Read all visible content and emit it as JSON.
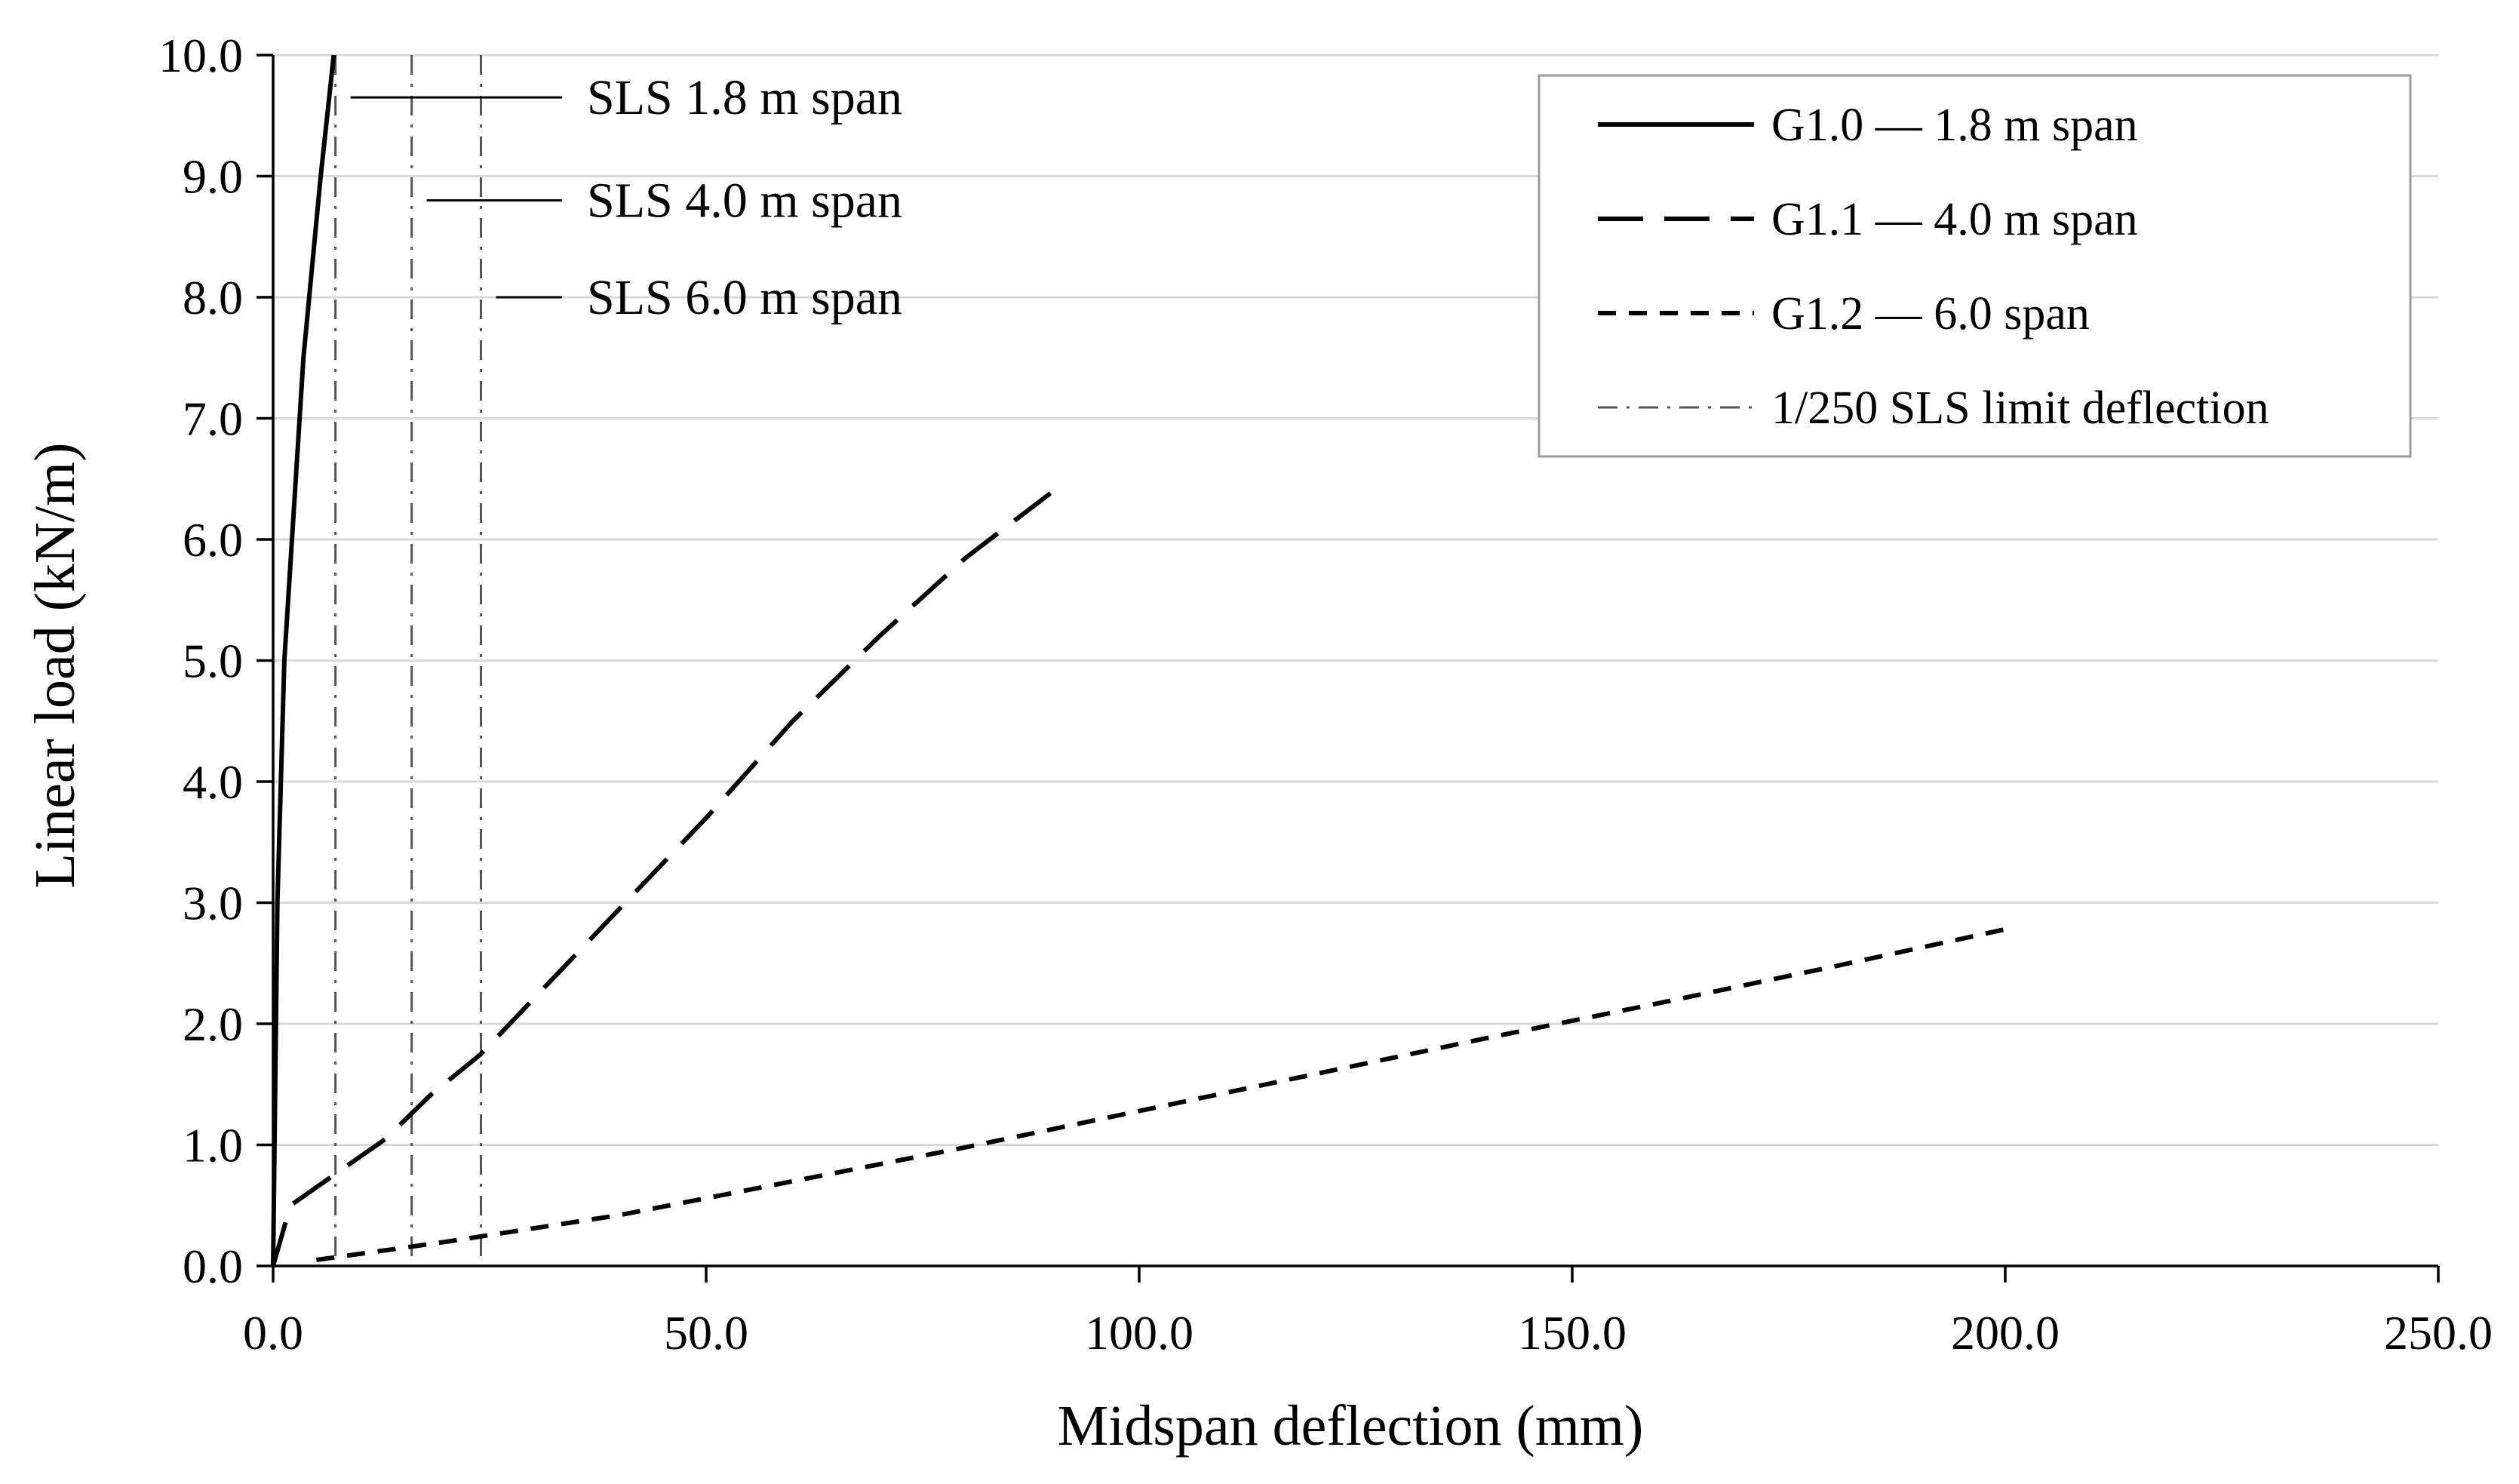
{
  "chart_data": {
    "type": "line",
    "xlabel": "Midspan deflection (mm)",
    "ylabel": "Linear load (kN/m)",
    "xlim": [
      0,
      250
    ],
    "ylim": [
      0,
      10
    ],
    "x_ticks": [
      "0.0",
      "50.0",
      "100.0",
      "150.0",
      "200.0",
      "250.0"
    ],
    "y_ticks": [
      "0.0",
      "1.0",
      "2.0",
      "3.0",
      "4.0",
      "5.0",
      "6.0",
      "7.0",
      "8.0",
      "9.0",
      "10.0"
    ],
    "grid": "horizontal",
    "legend_position": "top-right",
    "series": [
      {
        "name": "G1.0 — 1.8 m span",
        "style": "solid",
        "color": "#000000",
        "points": [
          [
            0,
            0
          ],
          [
            0.5,
            3.0
          ],
          [
            1.3,
            5.0
          ],
          [
            3.5,
            7.5
          ],
          [
            5.5,
            9.0
          ],
          [
            7.0,
            10.0
          ]
        ]
      },
      {
        "name": "G1.1 — 4.0 m span",
        "style": "dashed",
        "color": "#000000",
        "points": [
          [
            0,
            0
          ],
          [
            2,
            0.5
          ],
          [
            8,
            0.8
          ],
          [
            13,
            1.05
          ],
          [
            18,
            1.4
          ],
          [
            24,
            1.75
          ],
          [
            30,
            2.2
          ],
          [
            40,
            2.95
          ],
          [
            50,
            3.7
          ],
          [
            60,
            4.5
          ],
          [
            70,
            5.2
          ],
          [
            80,
            5.85
          ],
          [
            91,
            6.45
          ]
        ]
      },
      {
        "name": "G1.2 — 6.0 span",
        "style": "dotted",
        "color": "#000000",
        "points": [
          [
            5,
            0.05
          ],
          [
            20,
            0.2
          ],
          [
            40,
            0.42
          ],
          [
            60,
            0.7
          ],
          [
            80,
            0.98
          ],
          [
            100,
            1.28
          ],
          [
            120,
            1.58
          ],
          [
            140,
            1.88
          ],
          [
            160,
            2.17
          ],
          [
            180,
            2.47
          ],
          [
            200,
            2.78
          ]
        ]
      }
    ],
    "limit_lines": {
      "name": "1/250 SLS limit deflection",
      "style": "dash-dot",
      "x": [
        7.2,
        16,
        24
      ]
    },
    "annotations": [
      {
        "text": "SLS 1.8 m span",
        "x": 7.2,
        "y": 9.65
      },
      {
        "text": "SLS 4.0 m span",
        "x": 16,
        "y": 8.8
      },
      {
        "text": "SLS 6.0 m span",
        "x": 24,
        "y": 8.0
      }
    ]
  }
}
